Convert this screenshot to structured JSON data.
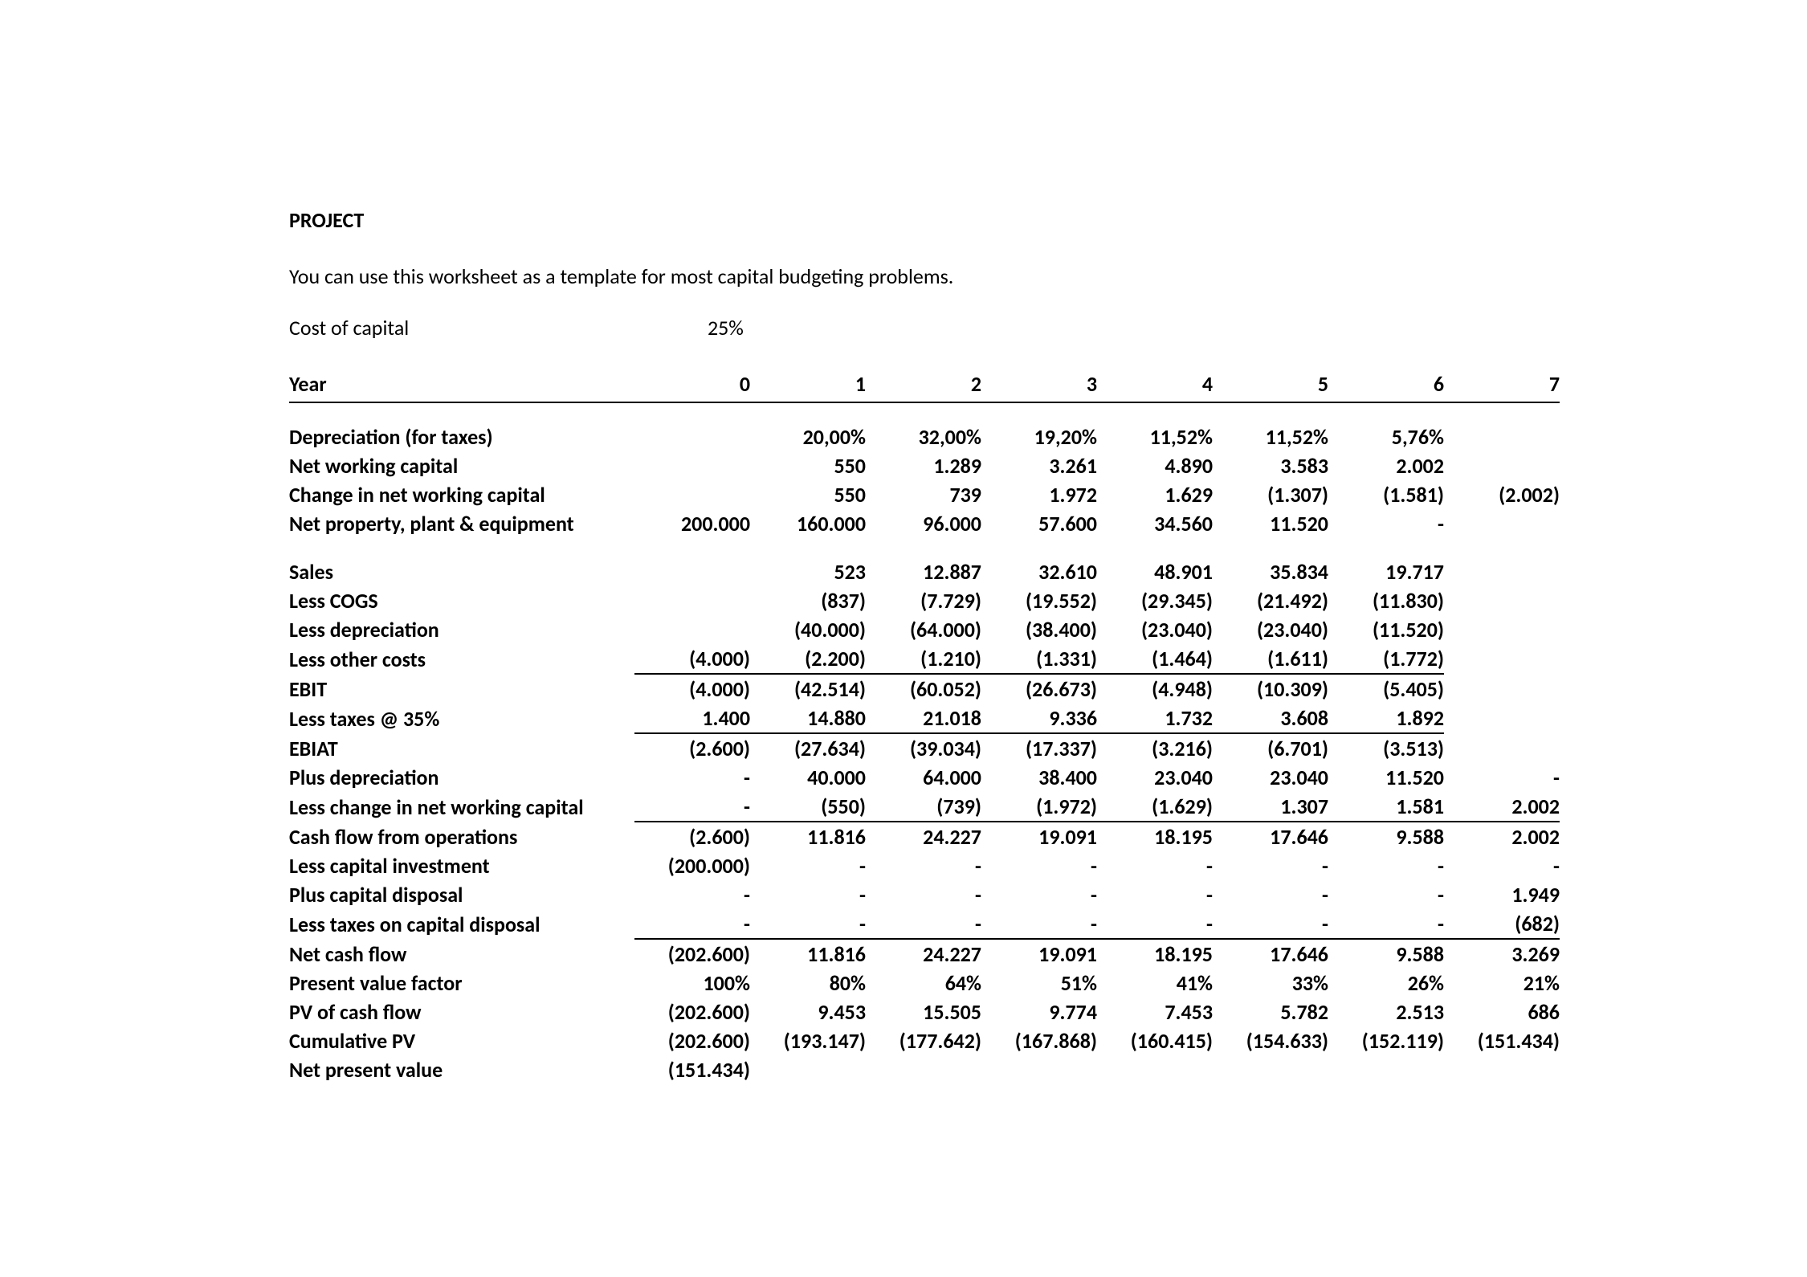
{
  "title": "PROJECT",
  "subtitle": "You can use this worksheet as a template for most capital budgeting problems.",
  "cost_of_capital": {
    "label": "Cost of capital",
    "value": "25%"
  },
  "header": {
    "label": "Year",
    "cols": [
      "0",
      "1",
      "2",
      "3",
      "4",
      "5",
      "6",
      "7"
    ]
  },
  "rows": {
    "depreciation_taxes": {
      "label": "Depreciation (for taxes)",
      "vals": [
        "",
        "20,00%",
        "32,00%",
        "19,20%",
        "11,52%",
        "11,52%",
        "5,76%",
        ""
      ]
    },
    "net_working_capital": {
      "label": "Net working capital",
      "vals": [
        "",
        "550",
        "1.289",
        "3.261",
        "4.890",
        "3.583",
        "2.002",
        ""
      ]
    },
    "change_nwc": {
      "label": "Change in net working capital",
      "vals": [
        "",
        "550",
        "739",
        "1.972",
        "1.629",
        "(1.307)",
        "(1.581)",
        "(2.002)"
      ]
    },
    "net_ppe": {
      "label": "Net property, plant & equipment",
      "vals": [
        "200.000",
        "160.000",
        "96.000",
        "57.600",
        "34.560",
        "11.520",
        "-",
        ""
      ]
    },
    "sales": {
      "label": "Sales",
      "vals": [
        "",
        "523",
        "12.887",
        "32.610",
        "48.901",
        "35.834",
        "19.717",
        ""
      ]
    },
    "less_cogs": {
      "label": "Less COGS",
      "vals": [
        "",
        "(837)",
        "(7.729)",
        "(19.552)",
        "(29.345)",
        "(21.492)",
        "(11.830)",
        ""
      ]
    },
    "less_depr": {
      "label": "Less depreciation",
      "vals": [
        "",
        "(40.000)",
        "(64.000)",
        "(38.400)",
        "(23.040)",
        "(23.040)",
        "(11.520)",
        ""
      ]
    },
    "less_other": {
      "label": "Less other costs",
      "vals": [
        "(4.000)",
        "(2.200)",
        "(1.210)",
        "(1.331)",
        "(1.464)",
        "(1.611)",
        "(1.772)",
        ""
      ]
    },
    "ebit": {
      "label": "EBIT",
      "vals": [
        "(4.000)",
        "(42.514)",
        "(60.052)",
        "(26.673)",
        "(4.948)",
        "(10.309)",
        "(5.405)",
        ""
      ]
    },
    "less_taxes": {
      "label": "Less taxes @ 35%",
      "vals": [
        "1.400",
        "14.880",
        "21.018",
        "9.336",
        "1.732",
        "3.608",
        "1.892",
        ""
      ]
    },
    "ebiat": {
      "label": "EBIAT",
      "vals": [
        "(2.600)",
        "(27.634)",
        "(39.034)",
        "(17.337)",
        "(3.216)",
        "(6.701)",
        "(3.513)",
        ""
      ]
    },
    "plus_depr": {
      "label": "Plus depreciation",
      "vals": [
        "-",
        "40.000",
        "64.000",
        "38.400",
        "23.040",
        "23.040",
        "11.520",
        "-"
      ]
    },
    "less_change_nwc": {
      "label": "Less change in net working capital",
      "vals": [
        "-",
        "(550)",
        "(739)",
        "(1.972)",
        "(1.629)",
        "1.307",
        "1.581",
        "2.002"
      ]
    },
    "cffo": {
      "label": "Cash flow from operations",
      "vals": [
        "(2.600)",
        "11.816",
        "24.227",
        "19.091",
        "18.195",
        "17.646",
        "9.588",
        "2.002"
      ]
    },
    "less_capex": {
      "label": "Less capital investment",
      "vals": [
        "(200.000)",
        "-",
        "-",
        "-",
        "-",
        "-",
        "-",
        "-"
      ]
    },
    "plus_disposal": {
      "label": "Plus capital disposal",
      "vals": [
        "-",
        "-",
        "-",
        "-",
        "-",
        "-",
        "-",
        "1.949"
      ]
    },
    "less_tax_disposal": {
      "label": "Less taxes on capital disposal",
      "vals": [
        "-",
        "-",
        "-",
        "-",
        "-",
        "-",
        "-",
        "(682)"
      ]
    },
    "net_cash_flow": {
      "label": "Net cash flow",
      "vals": [
        "(202.600)",
        "11.816",
        "24.227",
        "19.091",
        "18.195",
        "17.646",
        "9.588",
        "3.269"
      ]
    },
    "pv_factor": {
      "label": "Present value factor",
      "vals": [
        "100%",
        "80%",
        "64%",
        "51%",
        "41%",
        "33%",
        "26%",
        "21%"
      ]
    },
    "pv_cf": {
      "label": "PV of cash flow",
      "vals": [
        "(202.600)",
        "9.453",
        "15.505",
        "9.774",
        "7.453",
        "5.782",
        "2.513",
        "686"
      ]
    },
    "cum_pv": {
      "label": "Cumulative PV",
      "vals": [
        "(202.600)",
        "(193.147)",
        "(177.642)",
        "(167.868)",
        "(160.415)",
        "(154.633)",
        "(152.119)",
        "(151.434)"
      ]
    },
    "npv": {
      "label": "Net present value",
      "vals": [
        "(151.434)",
        "",
        "",
        "",
        "",
        "",
        "",
        ""
      ]
    }
  }
}
